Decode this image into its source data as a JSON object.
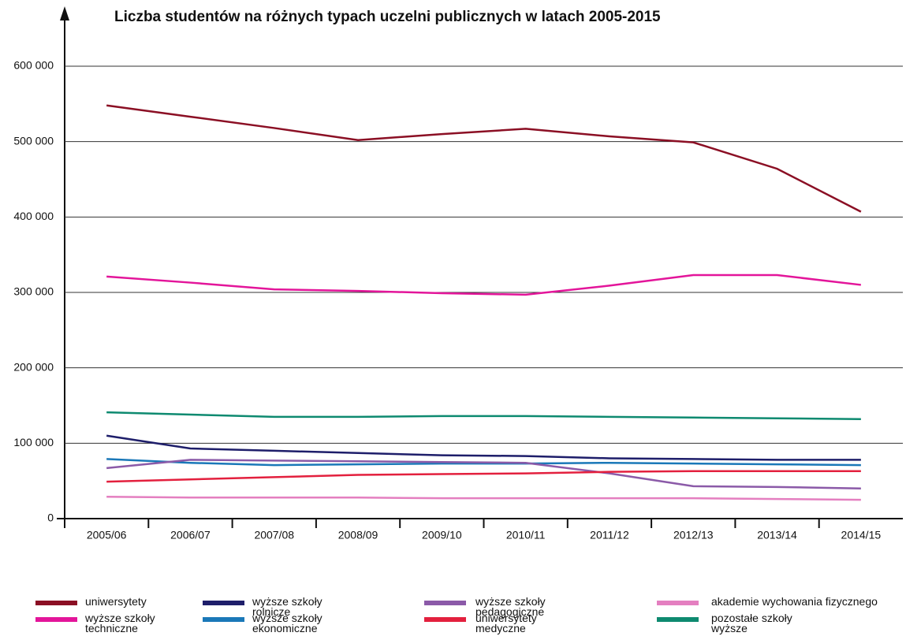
{
  "chart_data": {
    "type": "line",
    "title": "Liczba studentów na różnych typach uczelni publicznych w latach 2005-2015",
    "categories": [
      "2005/06",
      "2006/07",
      "2007/08",
      "2008/09",
      "2009/10",
      "2010/11",
      "2011/12",
      "2012/13",
      "2013/14",
      "2014/15"
    ],
    "series": [
      {
        "name": "uniwersytety",
        "color": "#8b0f24",
        "values": [
          548000,
          533000,
          518000,
          502000,
          510000,
          517000,
          507000,
          499000,
          464000,
          407000
        ]
      },
      {
        "name": "wyższe szkoły techniczne",
        "color": "#e3159a",
        "values": [
          321000,
          313000,
          304000,
          302000,
          299000,
          297000,
          309000,
          323000,
          323000,
          310000
        ]
      },
      {
        "name": "wyższe szkoły rolnicze",
        "color": "#1e1e6a",
        "values": [
          110000,
          93000,
          90000,
          87000,
          84000,
          83000,
          80000,
          79000,
          78000,
          78000
        ]
      },
      {
        "name": "wyższe szkoły ekonomiczne",
        "color": "#1a78b8",
        "values": [
          79000,
          74000,
          71000,
          72000,
          73000,
          73000,
          74000,
          73000,
          72000,
          71000
        ]
      },
      {
        "name": "wyższe szkoły pedagogiczne",
        "color": "#8b5aa8",
        "values": [
          67000,
          78000,
          77000,
          76000,
          75000,
          74000,
          60000,
          43000,
          42000,
          40000
        ]
      },
      {
        "name": "uniwersytety medyczne",
        "color": "#e3203e",
        "values": [
          49000,
          52000,
          55000,
          58000,
          59000,
          60000,
          62000,
          63000,
          63000,
          63000
        ]
      },
      {
        "name": "akademie wychowania fizycznego",
        "color": "#e47fc0",
        "values": [
          29000,
          28000,
          28000,
          28000,
          27000,
          27000,
          27000,
          27000,
          26000,
          25000
        ]
      },
      {
        "name": "pozostałe szkoły wyższe",
        "color": "#0e8a70",
        "values": [
          141000,
          138000,
          135000,
          135000,
          136000,
          136000,
          135000,
          134000,
          133000,
          132000
        ]
      }
    ],
    "ylim": [
      0,
      600000
    ],
    "yticks": [
      0,
      {
        "value": 100000,
        "label": "100 000"
      },
      {
        "value": 200000,
        "label": "200 000"
      },
      {
        "value": 300000,
        "label": "300 000"
      },
      {
        "value": 400000,
        "label": "400 000"
      },
      {
        "value": 500000,
        "label": "500 000"
      },
      {
        "value": 600000,
        "label": "600 000"
      }
    ],
    "grid": true
  }
}
